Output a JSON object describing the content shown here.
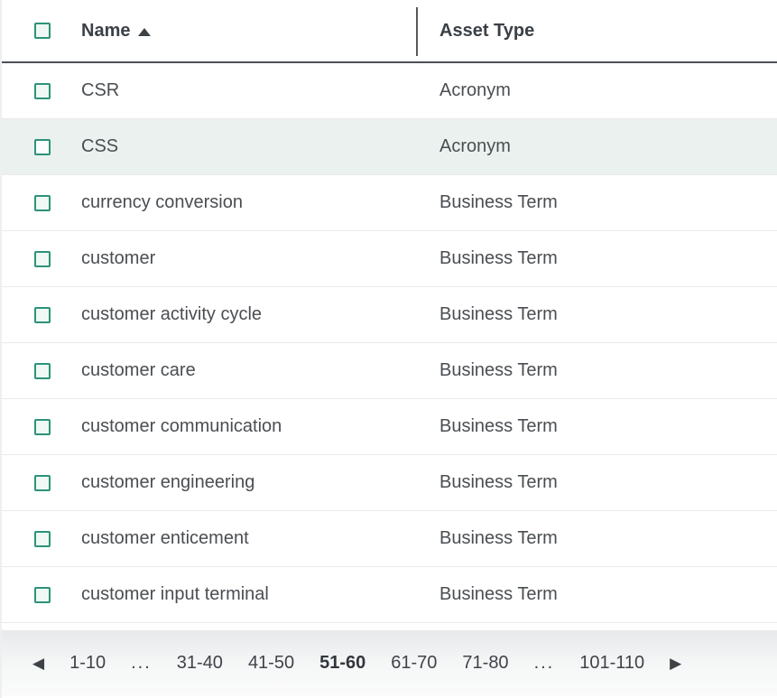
{
  "table": {
    "header": {
      "name_label": "Name",
      "asset_type_label": "Asset Type",
      "sort_column": "Name",
      "sort_direction": "ascending"
    },
    "rows": [
      {
        "name": "CSR",
        "asset_type": "Acronym",
        "highlighted": false
      },
      {
        "name": "CSS",
        "asset_type": "Acronym",
        "highlighted": true
      },
      {
        "name": "currency conversion",
        "asset_type": "Business Term",
        "highlighted": false
      },
      {
        "name": "customer",
        "asset_type": "Business Term",
        "highlighted": false
      },
      {
        "name": "customer activity cycle",
        "asset_type": "Business Term",
        "highlighted": false
      },
      {
        "name": "customer care",
        "asset_type": "Business Term",
        "highlighted": false
      },
      {
        "name": "customer communication",
        "asset_type": "Business Term",
        "highlighted": false
      },
      {
        "name": "customer engineering",
        "asset_type": "Business Term",
        "highlighted": false
      },
      {
        "name": "customer enticement",
        "asset_type": "Business Term",
        "highlighted": false
      },
      {
        "name": "customer input terminal",
        "asset_type": "Business Term",
        "highlighted": false
      }
    ]
  },
  "pagination": {
    "prev_icon": "◀",
    "next_icon": "▶",
    "items": [
      {
        "label": "1-10",
        "current": false,
        "ellipsis": false
      },
      {
        "label": "...",
        "current": false,
        "ellipsis": true
      },
      {
        "label": "31-40",
        "current": false,
        "ellipsis": false
      },
      {
        "label": "41-50",
        "current": false,
        "ellipsis": false
      },
      {
        "label": "51-60",
        "current": true,
        "ellipsis": false
      },
      {
        "label": "61-70",
        "current": false,
        "ellipsis": false
      },
      {
        "label": "71-80",
        "current": false,
        "ellipsis": false
      },
      {
        "label": "...",
        "current": false,
        "ellipsis": true
      },
      {
        "label": "101-110",
        "current": false,
        "ellipsis": false
      }
    ]
  },
  "colors": {
    "accent": "#2c9378",
    "checkbox_fill": "#eff8f4",
    "row_highlight": "#eaf1ef",
    "header_text": "#3b4046",
    "body_text": "#4a4e52"
  }
}
